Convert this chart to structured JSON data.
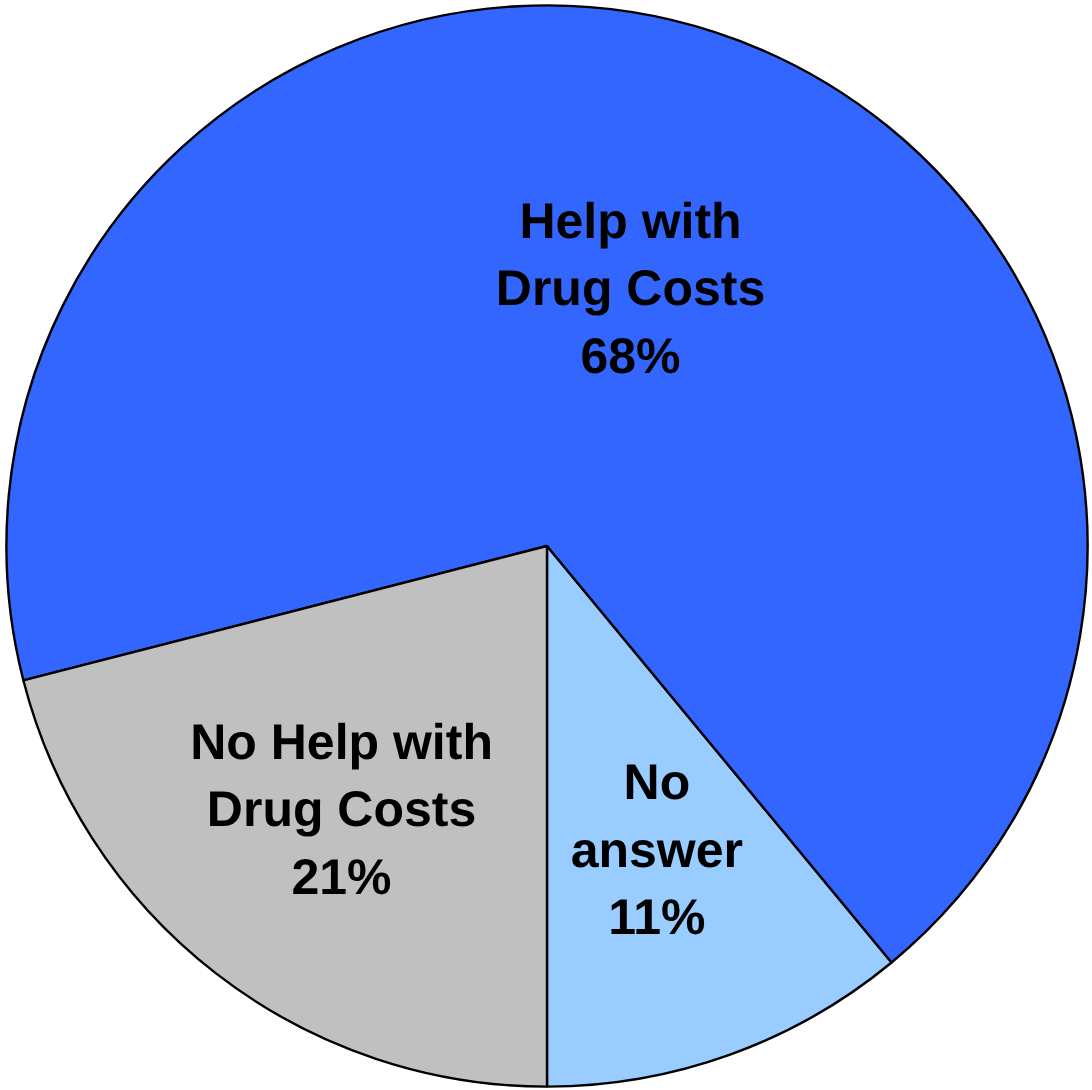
{
  "chart_data": {
    "type": "pie",
    "categories": [
      "No answer",
      "Help with Drug Costs",
      "No Help with Drug Costs"
    ],
    "values": [
      11,
      68,
      21
    ],
    "colors": [
      "#99ccff",
      "#3366ff",
      "#c0c0c0"
    ],
    "value_labels": [
      "11%",
      "68%",
      "21%"
    ]
  }
}
